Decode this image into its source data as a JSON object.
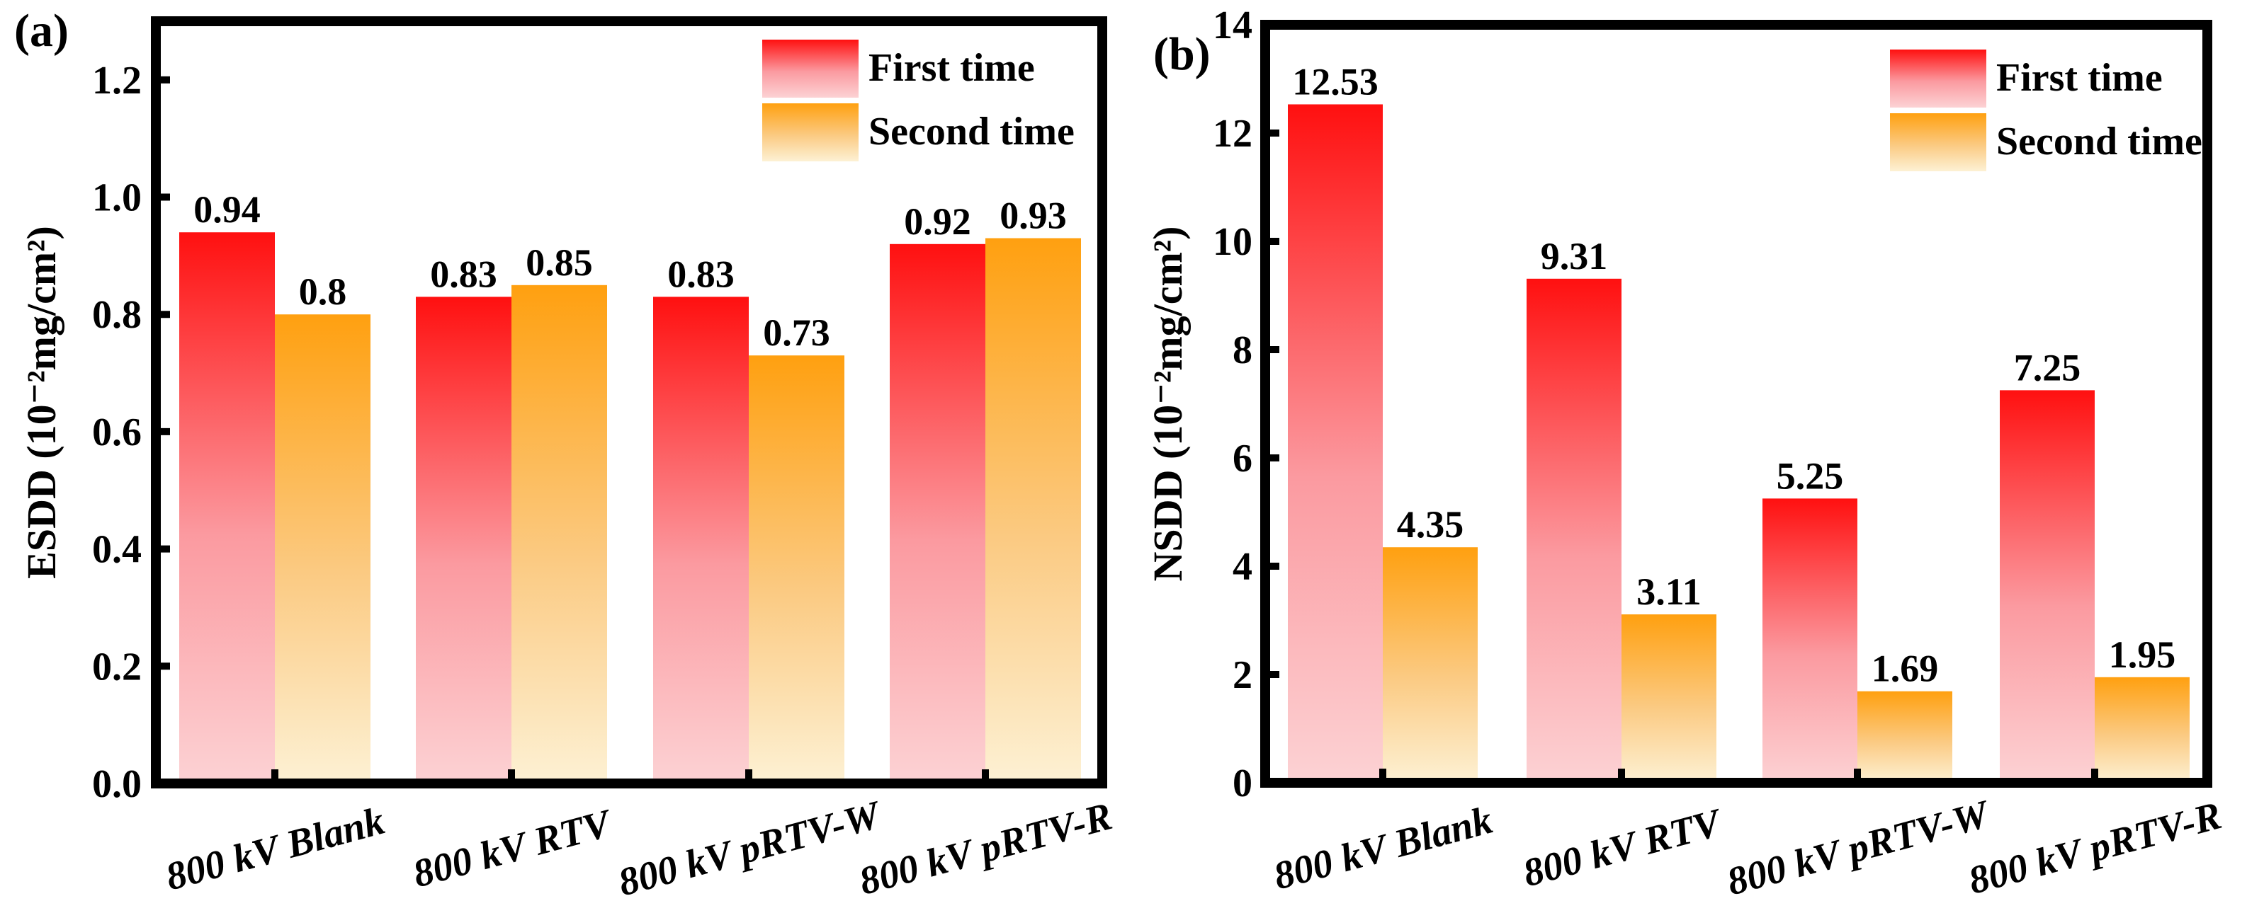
{
  "chart_data": [
    {
      "type": "bar",
      "panel_label": "(a)",
      "ylabel": "ESDD (10⁻²mg/cm²)",
      "xlabel": "",
      "ylim": [
        0,
        1.3
      ],
      "yticks": [
        0.0,
        0.2,
        0.4,
        0.6,
        0.8,
        1.0,
        1.2
      ],
      "ytick_labels": [
        "0.0",
        "0.2",
        "0.4",
        "0.6",
        "0.8",
        "1.0",
        "1.2"
      ],
      "categories": [
        "800 kV Blank",
        "800 kV RTV",
        "800 kV pRTV-W",
        "800 kV pRTV-R"
      ],
      "series": [
        {
          "name": "First time",
          "values": [
            0.94,
            0.83,
            0.83,
            0.92
          ],
          "labels": [
            "0.94",
            "0.83",
            "0.83",
            "0.92"
          ],
          "color_top": "#ff1010",
          "color_bottom": "#fcd2d4"
        },
        {
          "name": "Second time",
          "values": [
            0.8,
            0.85,
            0.73,
            0.93
          ],
          "labels": [
            "0.8",
            "0.85",
            "0.73",
            "0.93"
          ],
          "color_top": "#ffa010",
          "color_bottom": "#fdf1d4"
        }
      ],
      "legend_position": "top-right",
      "grid": false
    },
    {
      "type": "bar",
      "panel_label": "(b)",
      "ylabel": "NSDD (10⁻²mg/cm²)",
      "xlabel": "",
      "ylim": [
        0,
        14
      ],
      "yticks": [
        0,
        2,
        4,
        6,
        8,
        10,
        12,
        14
      ],
      "ytick_labels": [
        "0",
        "2",
        "4",
        "6",
        "8",
        "10",
        "12",
        "14"
      ],
      "categories": [
        "800 kV Blank",
        "800 kV RTV",
        "800 kV pRTV-W",
        "800 kV pRTV-R"
      ],
      "series": [
        {
          "name": "First time",
          "values": [
            12.53,
            9.31,
            5.25,
            7.25
          ],
          "labels": [
            "12.53",
            "9.31",
            "5.25",
            "7.25"
          ],
          "color_top": "#ff1010",
          "color_bottom": "#fcd2d4"
        },
        {
          "name": "Second time",
          "values": [
            4.35,
            3.11,
            1.69,
            1.95
          ],
          "labels": [
            "4.35",
            "3.11",
            "1.69",
            "1.95"
          ],
          "color_top": "#ffa010",
          "color_bottom": "#fdf1d4"
        }
      ],
      "legend_position": "top-right",
      "grid": false
    }
  ]
}
